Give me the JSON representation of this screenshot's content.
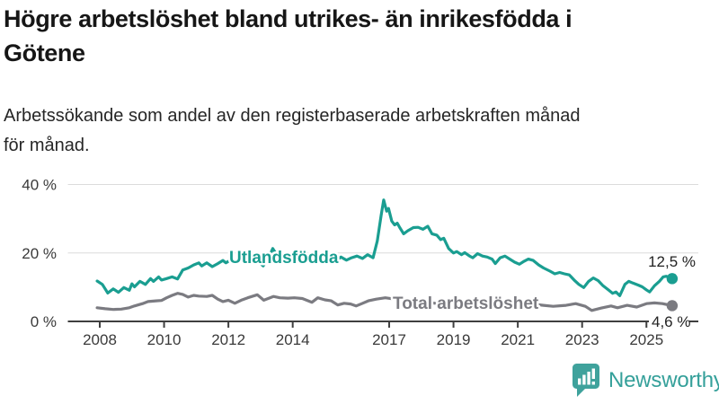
{
  "header": {
    "title": "Högre arbetslöshet bland utrikes- än inrikesfödda i Götene",
    "title_lines": [
      "Högre arbetslöshet bland utrikes- än inrikesfödda i",
      "Götene"
    ],
    "subtitle": "Arbetssökande som andel av den registerbaserade arbetskraften månad för månad.",
    "subtitle_lines": [
      "Arbetssökande som andel av den registerbaserade arbetskraften månad",
      "för månad."
    ]
  },
  "chart_data": {
    "type": "line",
    "title": "Högre arbetslöshet bland utrikes- än inrikesfödda i Götene",
    "subtitle": "Arbetssökande som andel av den registerbaserade arbetskraften månad för månad.",
    "unit": "%",
    "grid": true,
    "legend_position": "inline-labels",
    "x_axis": {
      "ticks": [
        2008,
        2010,
        2012,
        2014,
        2017,
        2019,
        2021,
        2023,
        2025
      ],
      "range": [
        2007.9,
        2025.85
      ]
    },
    "y_axis": {
      "ticks": [
        {
          "value": 0,
          "label": "0 %"
        },
        {
          "value": 20,
          "label": "20 %"
        },
        {
          "value": 40,
          "label": "40 %"
        }
      ],
      "range": [
        0,
        42
      ]
    },
    "style": {
      "grid_color": "#dcdcdc",
      "axis_color": "#3f3f3f",
      "tick_label_color": "#3a3a3a",
      "end_label_color": "#222222"
    },
    "series": [
      {
        "name": "Utlandsfödda",
        "color": "#1a9e91",
        "end_label": "12,5 %",
        "points": [
          [
            2007.92,
            11.8
          ],
          [
            2008.08,
            10.8
          ],
          [
            2008.25,
            8.3
          ],
          [
            2008.42,
            9.5
          ],
          [
            2008.58,
            8.5
          ],
          [
            2008.75,
            9.9
          ],
          [
            2008.92,
            9.1
          ],
          [
            2009.0,
            11.0
          ],
          [
            2009.08,
            10.1
          ],
          [
            2009.25,
            11.7
          ],
          [
            2009.42,
            10.8
          ],
          [
            2009.58,
            12.5
          ],
          [
            2009.67,
            11.7
          ],
          [
            2009.83,
            13.0
          ],
          [
            2009.92,
            12.1
          ],
          [
            2010.08,
            12.5
          ],
          [
            2010.25,
            13.0
          ],
          [
            2010.42,
            12.4
          ],
          [
            2010.58,
            15.0
          ],
          [
            2010.75,
            15.6
          ],
          [
            2010.92,
            16.5
          ],
          [
            2011.08,
            17.1
          ],
          [
            2011.17,
            16.2
          ],
          [
            2011.33,
            17.1
          ],
          [
            2011.5,
            16.0
          ],
          [
            2011.67,
            16.9
          ],
          [
            2011.83,
            17.8
          ],
          [
            2011.92,
            17.1
          ],
          [
            2012.08,
            18.0
          ],
          [
            2012.25,
            17.2
          ],
          [
            2012.42,
            18.2
          ],
          [
            2012.58,
            17.3
          ],
          [
            2012.75,
            18.6
          ],
          [
            2012.92,
            17.5
          ],
          [
            2013.08,
            16.2
          ],
          [
            2013.25,
            18.5
          ],
          [
            2013.38,
            21.3
          ],
          [
            2013.5,
            19.5
          ],
          [
            2013.67,
            18.2
          ],
          [
            2013.83,
            19.0
          ],
          [
            2014.0,
            18.2
          ],
          [
            2014.17,
            18.9
          ],
          [
            2014.33,
            18.0
          ],
          [
            2014.5,
            17.4
          ],
          [
            2014.67,
            18.4
          ],
          [
            2014.83,
            17.8
          ],
          [
            2015.0,
            18.8
          ],
          [
            2015.17,
            18.2
          ],
          [
            2015.33,
            17.6
          ],
          [
            2015.5,
            18.8
          ],
          [
            2015.67,
            17.9
          ],
          [
            2015.83,
            18.6
          ],
          [
            2016.0,
            19.1
          ],
          [
            2016.17,
            18.4
          ],
          [
            2016.33,
            19.5
          ],
          [
            2016.5,
            18.6
          ],
          [
            2016.63,
            23.5
          ],
          [
            2016.75,
            31.0
          ],
          [
            2016.83,
            35.5
          ],
          [
            2016.92,
            32.2
          ],
          [
            2016.98,
            33.0
          ],
          [
            2017.08,
            29.3
          ],
          [
            2017.17,
            28.2
          ],
          [
            2017.25,
            28.7
          ],
          [
            2017.33,
            27.4
          ],
          [
            2017.45,
            25.6
          ],
          [
            2017.58,
            26.5
          ],
          [
            2017.75,
            27.4
          ],
          [
            2017.9,
            27.5
          ],
          [
            2018.05,
            26.9
          ],
          [
            2018.2,
            27.8
          ],
          [
            2018.33,
            25.6
          ],
          [
            2018.48,
            25.2
          ],
          [
            2018.6,
            23.9
          ],
          [
            2018.7,
            24.3
          ],
          [
            2018.85,
            21.3
          ],
          [
            2019.0,
            20.0
          ],
          [
            2019.1,
            20.4
          ],
          [
            2019.25,
            19.5
          ],
          [
            2019.35,
            20.1
          ],
          [
            2019.5,
            19.1
          ],
          [
            2019.6,
            18.6
          ],
          [
            2019.75,
            19.8
          ],
          [
            2019.9,
            19.1
          ],
          [
            2020.05,
            18.8
          ],
          [
            2020.2,
            18.2
          ],
          [
            2020.3,
            16.9
          ],
          [
            2020.45,
            18.6
          ],
          [
            2020.6,
            19.1
          ],
          [
            2020.75,
            18.2
          ],
          [
            2020.9,
            17.3
          ],
          [
            2021.05,
            16.7
          ],
          [
            2021.2,
            17.6
          ],
          [
            2021.33,
            18.2
          ],
          [
            2021.48,
            17.8
          ],
          [
            2021.65,
            16.5
          ],
          [
            2021.8,
            15.6
          ],
          [
            2022.0,
            14.7
          ],
          [
            2022.15,
            13.9
          ],
          [
            2022.3,
            14.3
          ],
          [
            2022.45,
            13.9
          ],
          [
            2022.6,
            13.6
          ],
          [
            2022.75,
            12.1
          ],
          [
            2022.9,
            10.8
          ],
          [
            2023.05,
            9.9
          ],
          [
            2023.2,
            11.7
          ],
          [
            2023.35,
            12.7
          ],
          [
            2023.5,
            11.9
          ],
          [
            2023.65,
            10.4
          ],
          [
            2023.83,
            9.1
          ],
          [
            2023.95,
            8.2
          ],
          [
            2024.05,
            8.6
          ],
          [
            2024.17,
            7.5
          ],
          [
            2024.33,
            10.8
          ],
          [
            2024.45,
            11.7
          ],
          [
            2024.58,
            11.2
          ],
          [
            2024.75,
            10.6
          ],
          [
            2024.87,
            10.1
          ],
          [
            2025.0,
            9.2
          ],
          [
            2025.1,
            8.6
          ],
          [
            2025.25,
            10.4
          ],
          [
            2025.4,
            11.7
          ],
          [
            2025.52,
            13.0
          ],
          [
            2025.62,
            13.2
          ],
          [
            2025.72,
            12.7
          ],
          [
            2025.8,
            12.5
          ]
        ]
      },
      {
        "name": "Total arbetslöshet",
        "color": "#7b7b81",
        "end_label": "4,6 %",
        "points": [
          [
            2007.92,
            4.0
          ],
          [
            2008.17,
            3.7
          ],
          [
            2008.42,
            3.5
          ],
          [
            2008.67,
            3.6
          ],
          [
            2008.92,
            4.0
          ],
          [
            2009.08,
            4.5
          ],
          [
            2009.33,
            5.2
          ],
          [
            2009.5,
            5.8
          ],
          [
            2009.75,
            6.0
          ],
          [
            2009.92,
            6.1
          ],
          [
            2010.08,
            6.9
          ],
          [
            2010.25,
            7.6
          ],
          [
            2010.42,
            8.2
          ],
          [
            2010.58,
            7.9
          ],
          [
            2010.75,
            7.1
          ],
          [
            2010.92,
            7.6
          ],
          [
            2011.08,
            7.4
          ],
          [
            2011.33,
            7.3
          ],
          [
            2011.5,
            7.6
          ],
          [
            2011.67,
            6.5
          ],
          [
            2011.83,
            5.8
          ],
          [
            2012.0,
            6.2
          ],
          [
            2012.2,
            5.3
          ],
          [
            2012.4,
            6.2
          ],
          [
            2012.6,
            6.9
          ],
          [
            2012.9,
            7.8
          ],
          [
            2013.1,
            6.2
          ],
          [
            2013.4,
            7.3
          ],
          [
            2013.6,
            6.9
          ],
          [
            2013.85,
            6.8
          ],
          [
            2014.05,
            6.9
          ],
          [
            2014.3,
            6.7
          ],
          [
            2014.6,
            5.6
          ],
          [
            2014.78,
            6.9
          ],
          [
            2015.0,
            6.3
          ],
          [
            2015.2,
            6.0
          ],
          [
            2015.4,
            4.8
          ],
          [
            2015.6,
            5.3
          ],
          [
            2015.8,
            5.1
          ],
          [
            2015.97,
            4.5
          ],
          [
            2016.15,
            5.2
          ],
          [
            2016.35,
            6.0
          ],
          [
            2016.6,
            6.5
          ],
          [
            2016.88,
            6.9
          ],
          [
            2017.1,
            6.6
          ],
          [
            2017.3,
            6.2
          ],
          [
            2017.6,
            5.6
          ],
          [
            2017.9,
            5.9
          ],
          [
            2018.2,
            5.6
          ],
          [
            2018.5,
            5.2
          ],
          [
            2018.8,
            5.5
          ],
          [
            2019.1,
            5.3
          ],
          [
            2019.4,
            4.9
          ],
          [
            2019.7,
            5.2
          ],
          [
            2020.0,
            5.6
          ],
          [
            2020.3,
            6.2
          ],
          [
            2020.6,
            6.0
          ],
          [
            2020.9,
            5.6
          ],
          [
            2021.2,
            5.4
          ],
          [
            2021.5,
            5.0
          ],
          [
            2021.8,
            4.7
          ],
          [
            2022.1,
            4.4
          ],
          [
            2022.35,
            4.6
          ],
          [
            2022.5,
            4.7
          ],
          [
            2022.8,
            5.2
          ],
          [
            2023.1,
            4.4
          ],
          [
            2023.3,
            3.2
          ],
          [
            2023.6,
            3.9
          ],
          [
            2023.9,
            4.5
          ],
          [
            2024.1,
            4.0
          ],
          [
            2024.4,
            4.7
          ],
          [
            2024.7,
            4.2
          ],
          [
            2025.0,
            5.2
          ],
          [
            2025.25,
            5.4
          ],
          [
            2025.5,
            5.2
          ],
          [
            2025.8,
            4.6
          ]
        ]
      }
    ]
  },
  "footer": {
    "brand": "Newsworthy",
    "brand_color": "#35a09a",
    "logo_icon": "chart-speech-bubble"
  }
}
